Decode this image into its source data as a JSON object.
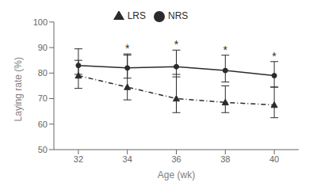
{
  "chart_data": {
    "type": "line",
    "x": [
      32,
      34,
      36,
      38,
      40
    ],
    "series": [
      {
        "name": "NRS",
        "color": "#2b2b2b",
        "values": [
          83.0,
          82.0,
          82.5,
          81.0,
          79.0
        ],
        "error_lower": [
          3.5,
          4.0,
          4.0,
          4.5,
          4.5
        ],
        "error_upper": [
          6.5,
          5.5,
          6.5,
          6.0,
          5.5
        ],
        "marker": "circle",
        "line_style": "solid"
      },
      {
        "name": "LRS",
        "color": "#2b2b2b",
        "values": [
          79.0,
          74.5,
          70.0,
          68.5,
          67.5
        ],
        "error_lower": [
          5.0,
          5.0,
          5.5,
          4.0,
          5.0
        ],
        "error_upper": [
          6.0,
          12.5,
          9.5,
          6.5,
          7.0
        ],
        "marker": "triangle",
        "line_style": "dashdot"
      }
    ],
    "annotations": [
      {
        "x": 34,
        "text": "*"
      },
      {
        "x": 36,
        "text": "*"
      },
      {
        "x": 38,
        "text": "*"
      },
      {
        "x": 40,
        "text": "*"
      }
    ],
    "xlabel": "Age (wk)",
    "ylabel": "Laying rate (%)",
    "xlim": [
      31,
      41
    ],
    "xticks": [
      32,
      34,
      36,
      38,
      40
    ],
    "ylim": [
      50,
      100
    ],
    "yticks": [
      50,
      60,
      70,
      80,
      90,
      100
    ],
    "legend": "upper center",
    "grid": false
  }
}
